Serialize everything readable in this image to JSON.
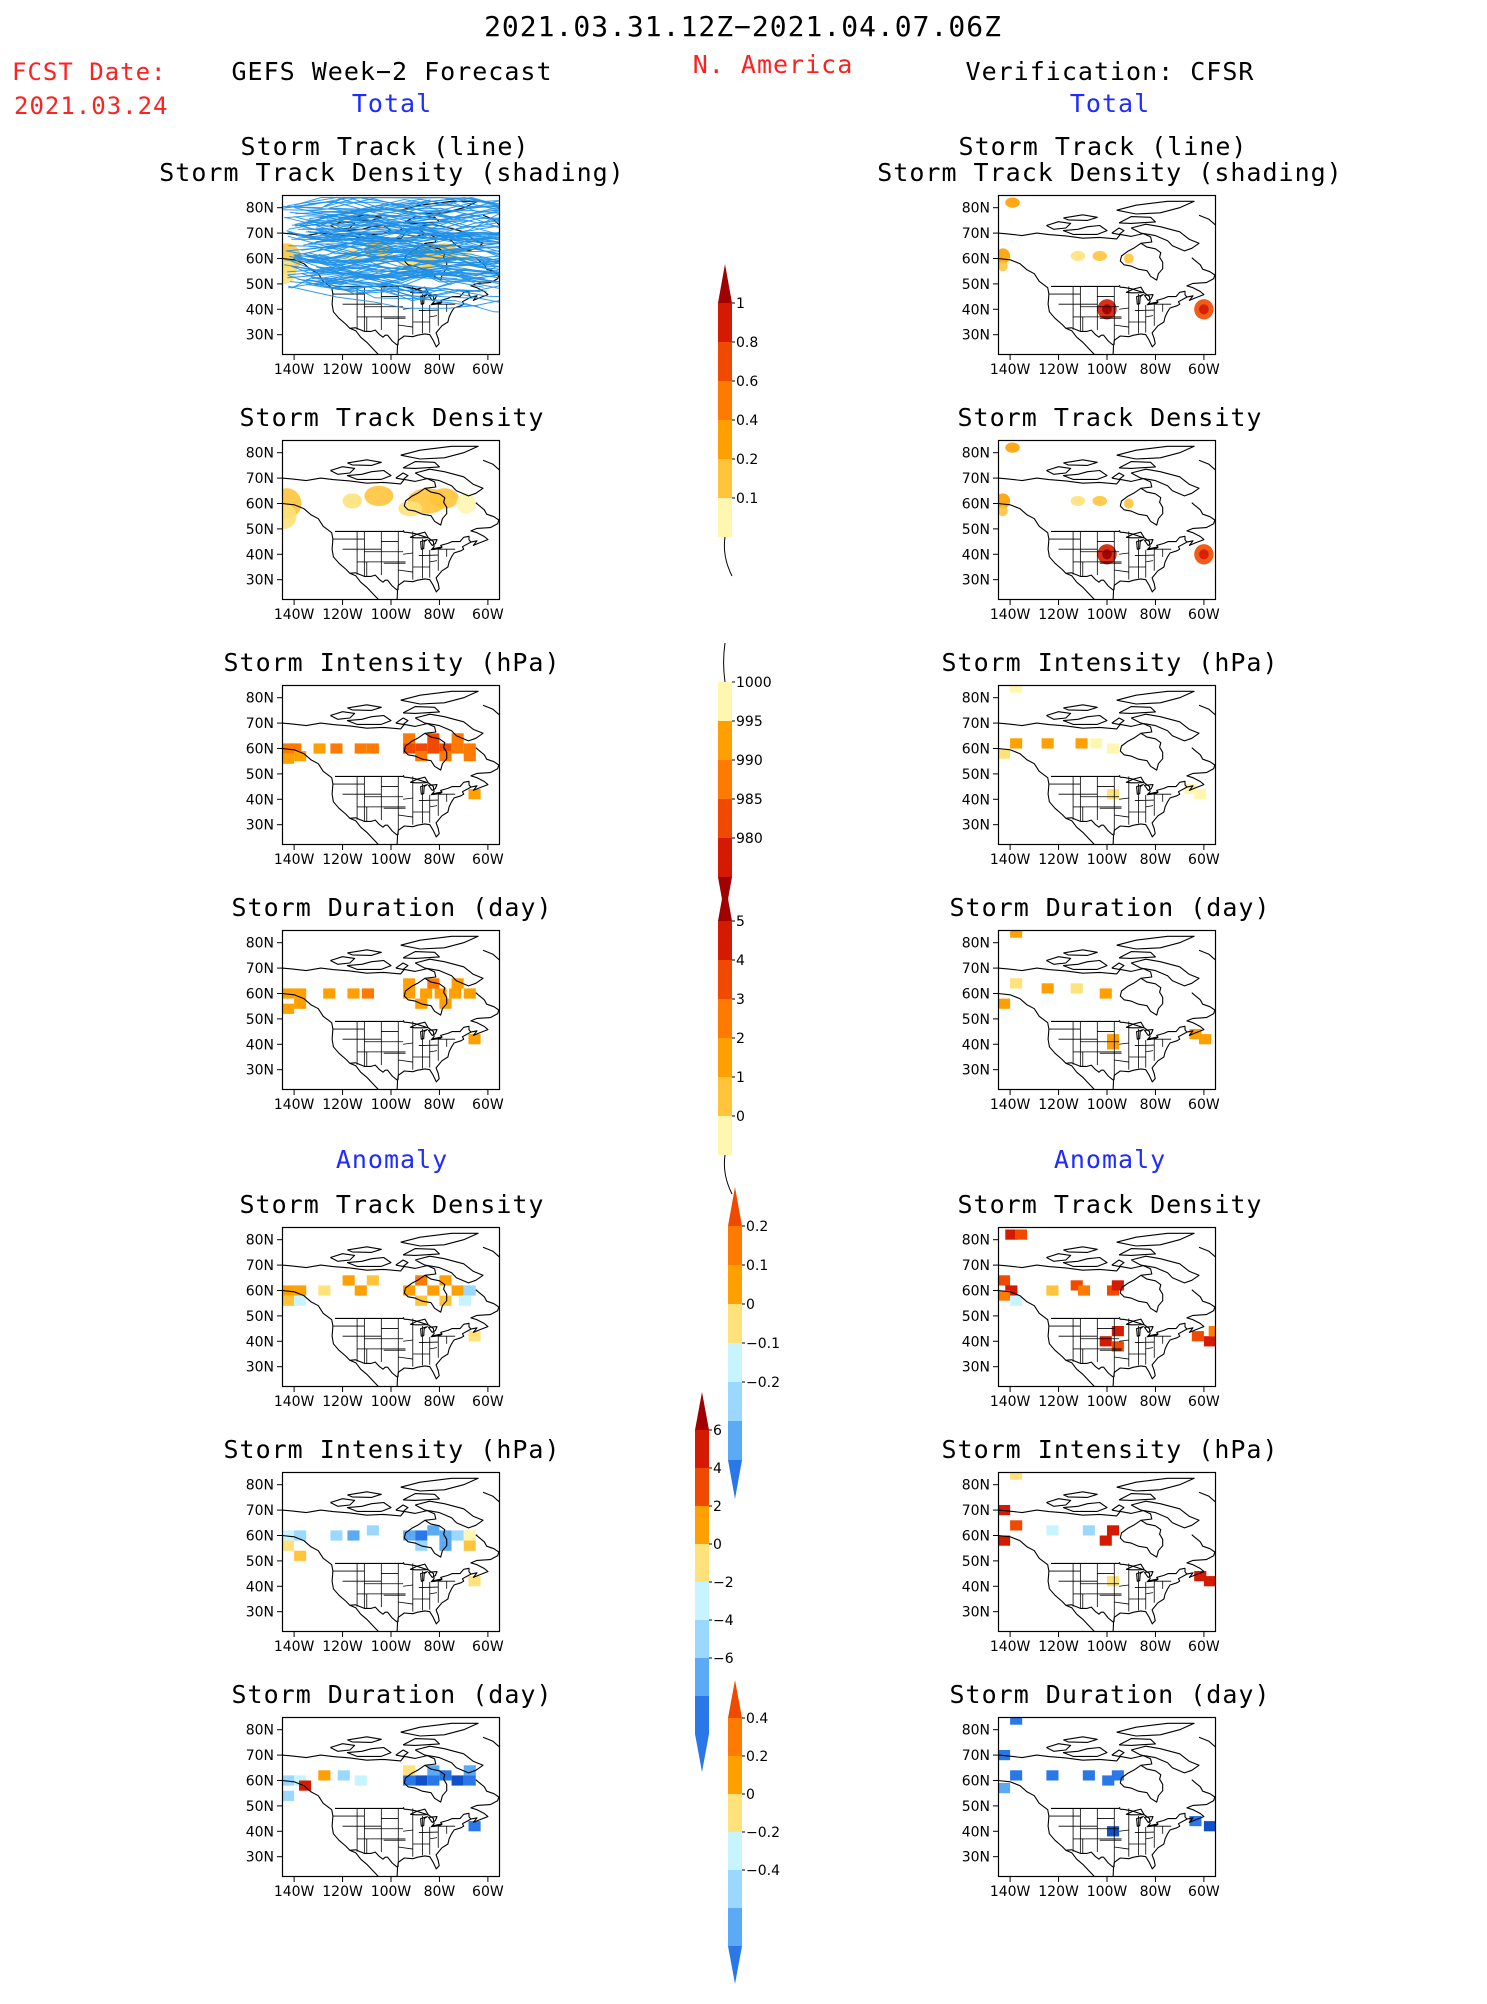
{
  "header": {
    "period": "2021.03.31.12Z−2021.04.07.06Z",
    "region": "N. America",
    "fcst_label": "FCST Date:",
    "fcst_date": "2021.03.24",
    "left_title": "GEFS Week−2 Forecast",
    "right_title": "Verification: CFSR",
    "total_label": "Total",
    "anomaly_label": "Anomaly"
  },
  "panel_titles": {
    "track_line": "Storm Track (line)",
    "track_shading": "Storm Track Density (shading)",
    "density": "Storm Track Density",
    "intensity": "Storm Intensity (hPa)",
    "duration": "Storm Duration (day)"
  },
  "axes": {
    "lat_labels": [
      "80N",
      "70N",
      "60N",
      "50N",
      "40N",
      "30N"
    ],
    "lon_labels": [
      "140W",
      "120W",
      "100W",
      "80W",
      "60W"
    ],
    "lon_range": [
      -145,
      -55
    ],
    "lat_range": [
      22,
      85
    ]
  },
  "colorbars": {
    "density_total": [
      "1",
      "0.8",
      "0.6",
      "0.4",
      "0.2",
      "0.1"
    ],
    "intensity_total": [
      "1000",
      "995",
      "990",
      "985",
      "980"
    ],
    "duration_total": [
      "5",
      "4",
      "3",
      "2",
      "1",
      "0"
    ],
    "density_anom": [
      "0.2",
      "0.1",
      "0",
      "−0.1",
      "−0.2"
    ],
    "intensity_anom": [
      "6",
      "4",
      "2",
      "0",
      "−2",
      "−4",
      "−6"
    ],
    "duration_anom": [
      "0.4",
      "0.2",
      "0",
      "−0.2",
      "−0.4"
    ]
  },
  "colors": {
    "title_red": "#ff2020",
    "label_blue": "#1f2bff",
    "track_line": "#1e90e8",
    "warm": [
      "#fff6b0",
      "#ffe27a",
      "#ffc43a",
      "#ffa000",
      "#ff7a00",
      "#f04a00",
      "#d41a00",
      "#a00000"
    ],
    "cool": [
      "#c8f4ff",
      "#9ad8ff",
      "#5aaaf5",
      "#2a78e8",
      "#1050c8"
    ]
  }
}
